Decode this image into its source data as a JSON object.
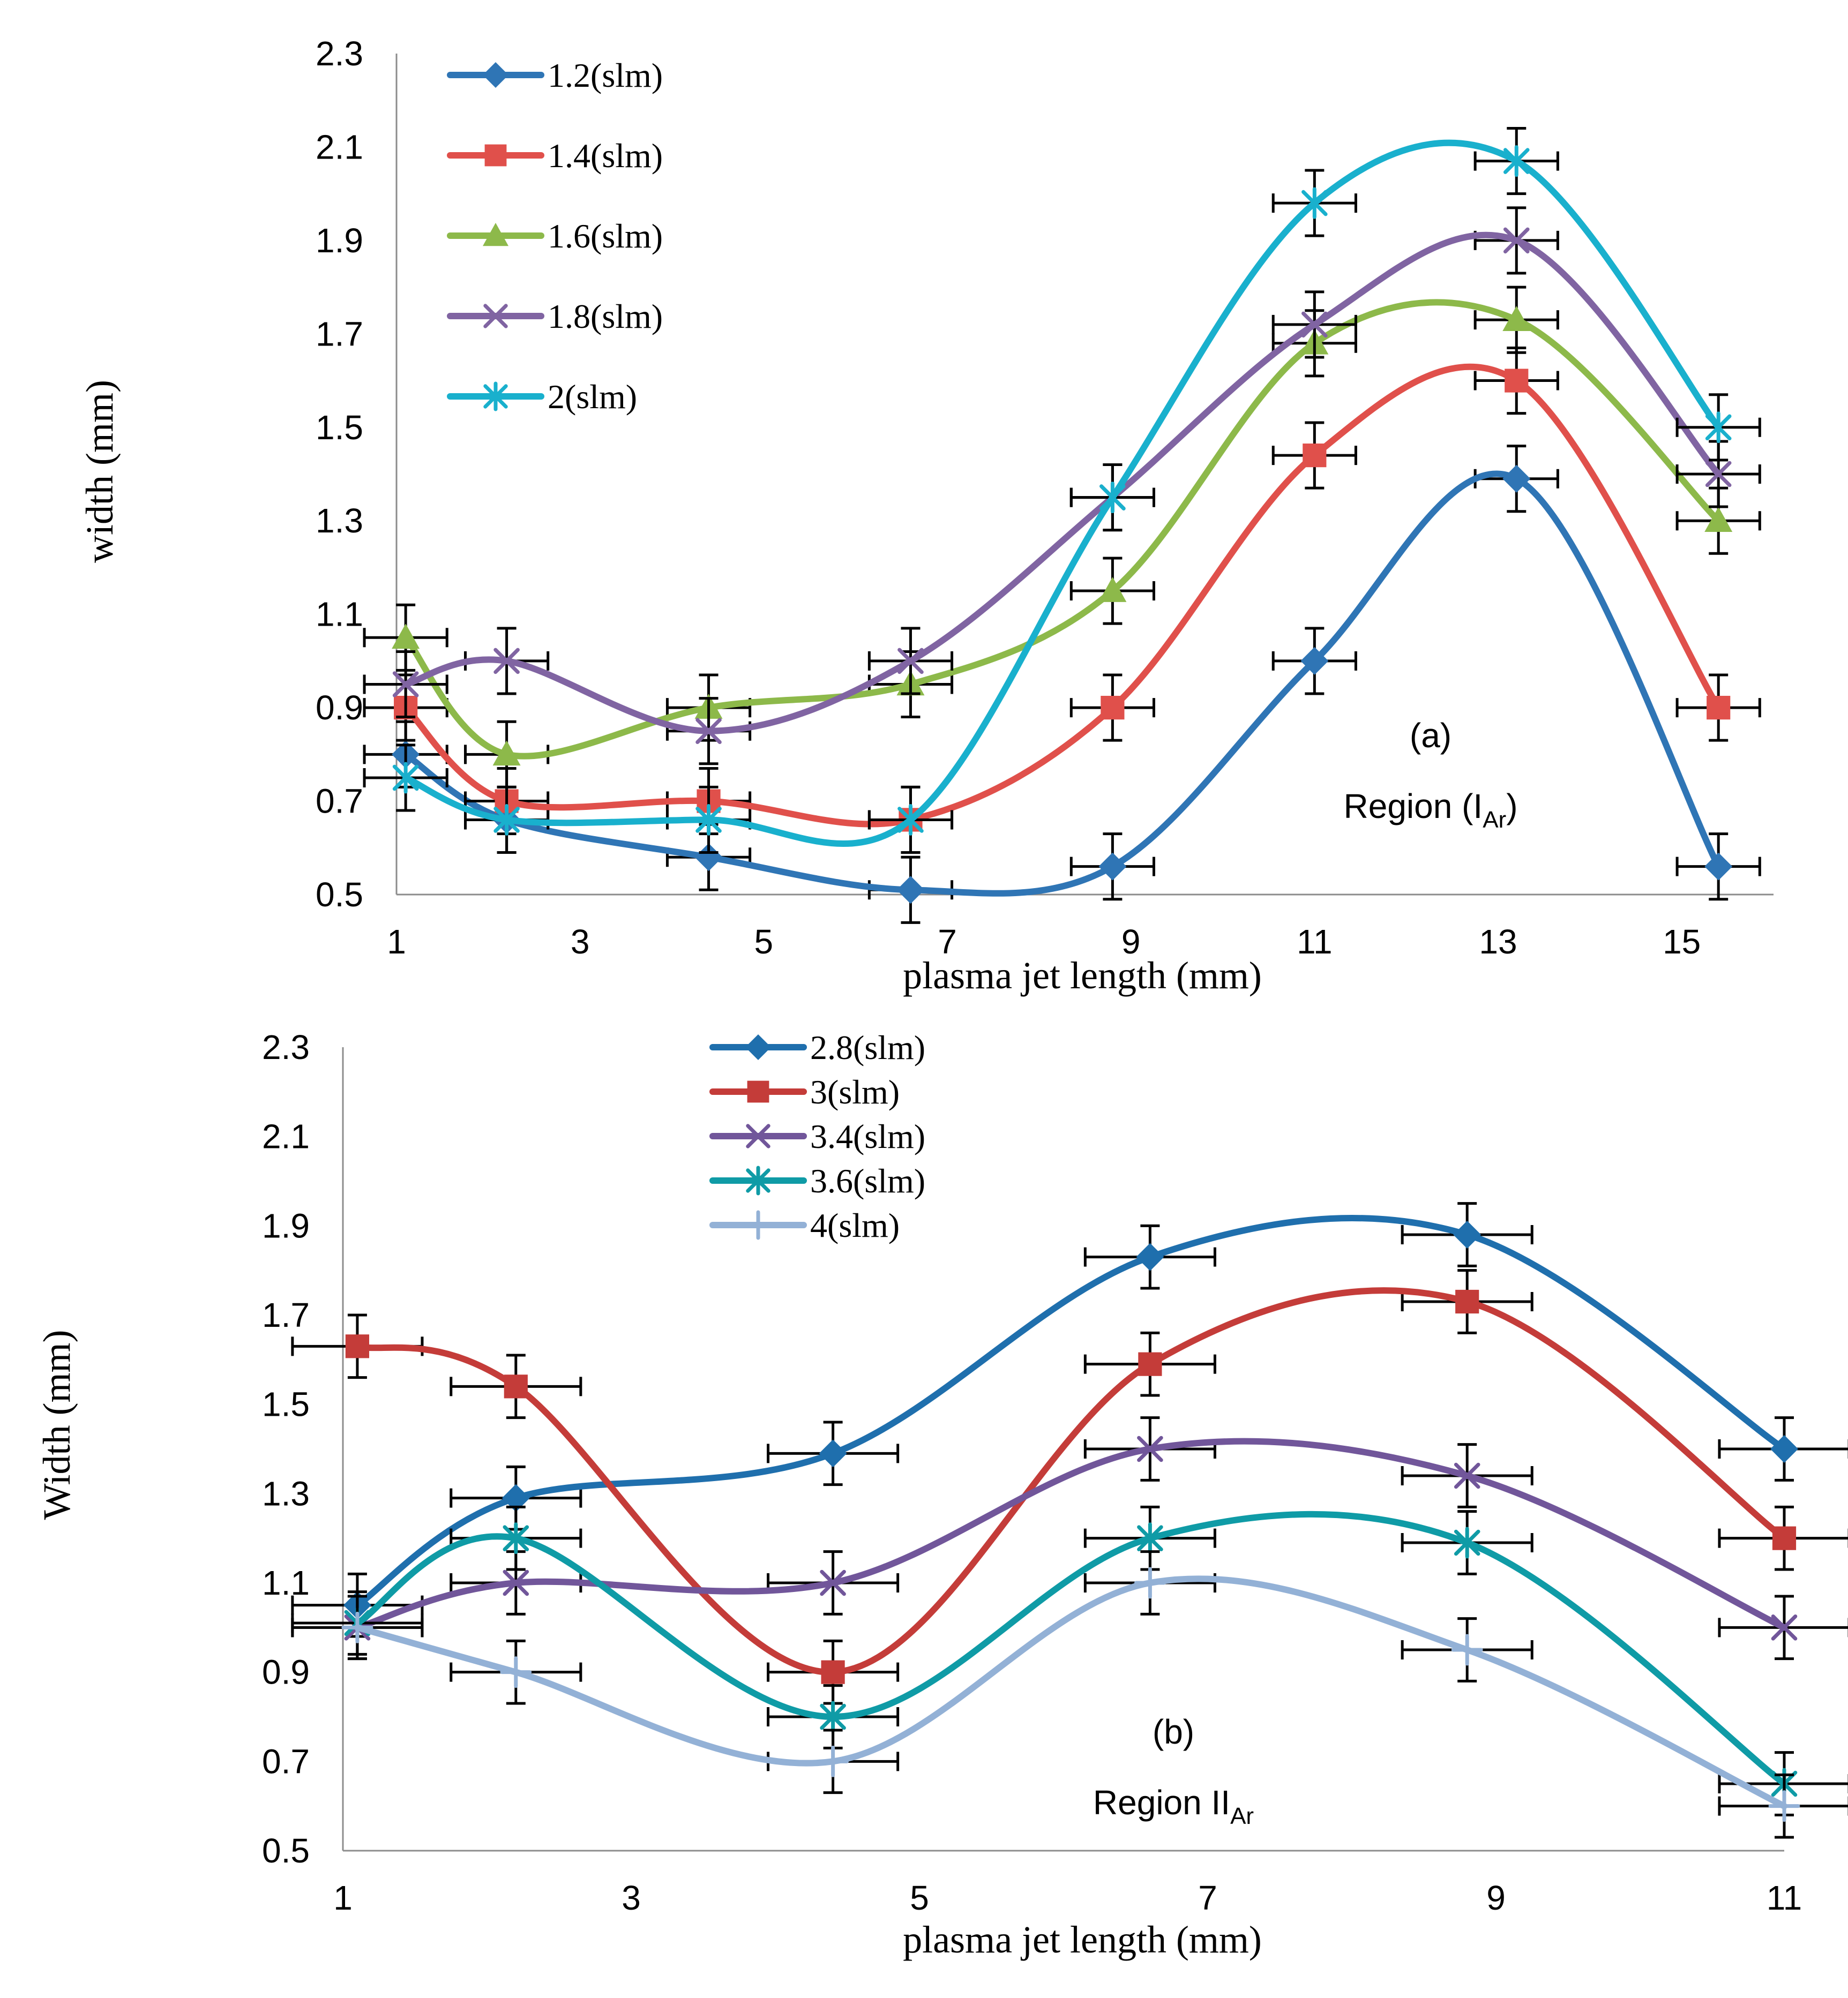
{
  "figure": {
    "panel_labels": [
      "(a)",
      "(b)"
    ]
  },
  "chart_data": [
    {
      "type": "line",
      "panel": "(a)",
      "annotation": {
        "label": "(a)",
        "region": "Region (I",
        "region_sub": "Ar",
        "region_close": ")"
      },
      "xlabel": "plasma jet length (mm)",
      "ylabel": "width (mm)",
      "xlim": [
        1,
        16
      ],
      "ylim": [
        0.5,
        2.3
      ],
      "xticks": [
        1,
        3,
        5,
        7,
        9,
        11,
        13,
        15
      ],
      "yticks": [
        0.5,
        0.7,
        0.9,
        1.1,
        1.3,
        1.5,
        1.7,
        1.9,
        2.1,
        2.3
      ],
      "x": [
        1.1,
        2.2,
        4.4,
        6.6,
        8.8,
        11.0,
        13.2,
        15.4
      ],
      "legend_position": "top-left",
      "error": {
        "x": 0.45,
        "y": 0.07
      },
      "series": [
        {
          "name": "1.2(slm)",
          "color": "#2f75b5",
          "marker": "diamond",
          "values": [
            0.8,
            0.66,
            0.58,
            0.51,
            0.56,
            1.0,
            1.39,
            0.56
          ]
        },
        {
          "name": "1.4(slm)",
          "color": "#e0504b",
          "marker": "square",
          "values": [
            0.9,
            0.7,
            0.7,
            0.66,
            0.9,
            1.44,
            1.6,
            0.9
          ]
        },
        {
          "name": "1.6(slm)",
          "color": "#8db94a",
          "marker": "triangle",
          "values": [
            1.05,
            0.8,
            0.9,
            0.95,
            1.15,
            1.68,
            1.73,
            1.3
          ]
        },
        {
          "name": "1.8(slm)",
          "color": "#8064a2",
          "marker": "x",
          "values": [
            0.95,
            1.0,
            0.85,
            1.0,
            1.35,
            1.72,
            1.9,
            1.4
          ]
        },
        {
          "name": "2(slm)",
          "color": "#19b0cd",
          "marker": "star",
          "values": [
            0.75,
            0.66,
            0.66,
            0.66,
            1.35,
            1.98,
            2.07,
            1.5
          ]
        }
      ]
    },
    {
      "type": "line",
      "panel": "(b)",
      "annotation": {
        "label": "(b)",
        "region": "Region II",
        "region_sub": "Ar",
        "region_close": ""
      },
      "xlabel": "plasma jet length (mm)",
      "ylabel": "Width (mm)",
      "xlim": [
        1,
        11
      ],
      "ylim": [
        0.5,
        2.3
      ],
      "xticks": [
        1,
        3,
        5,
        7,
        9,
        11
      ],
      "yticks": [
        0.5,
        0.7,
        0.9,
        1.1,
        1.3,
        1.5,
        1.7,
        1.9,
        2.1,
        2.3
      ],
      "x": [
        1.1,
        2.2,
        4.4,
        6.6,
        8.8,
        11.0
      ],
      "legend_position": "top-center",
      "error": {
        "x": 0.45,
        "y": 0.07
      },
      "series": [
        {
          "name": "2.8(slm)",
          "color": "#1f6fad",
          "marker": "diamond",
          "values": [
            1.05,
            1.29,
            1.39,
            1.83,
            1.88,
            1.4
          ]
        },
        {
          "name": "3(slm)",
          "color": "#c43c39",
          "marker": "square",
          "values": [
            1.63,
            1.54,
            0.9,
            1.59,
            1.73,
            1.2
          ]
        },
        {
          "name": "3.4(slm)",
          "color": "#71569a",
          "marker": "x",
          "values": [
            1.0,
            1.1,
            1.1,
            1.4,
            1.34,
            1.0
          ]
        },
        {
          "name": "3.6(slm)",
          "color": "#0f9ba6",
          "marker": "star",
          "values": [
            1.01,
            1.2,
            0.8,
            1.2,
            1.19,
            0.65
          ]
        },
        {
          "name": "4(slm)",
          "color": "#93b1d6",
          "marker": "plus",
          "values": [
            1.0,
            0.9,
            0.7,
            1.1,
            0.95,
            0.6
          ]
        }
      ]
    }
  ]
}
